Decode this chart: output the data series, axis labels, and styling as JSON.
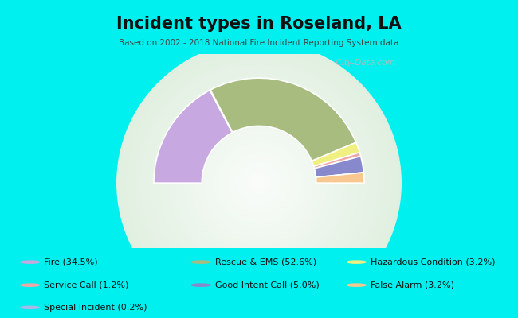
{
  "title": "Incident types in Roseland, LA",
  "subtitle": "Based on 2002 - 2018 National Fire Incident Reporting System data",
  "bg_color": "#00EFEF",
  "chart_bg_outer": "#d8e8cc",
  "chart_bg_inner": "#f0f8f0",
  "categories": [
    "Fire",
    "Service Call",
    "Special Incident",
    "Rescue & EMS",
    "Good Intent Call",
    "Hazardous Condition",
    "False Alarm"
  ],
  "values": [
    34.5,
    1.2,
    0.2,
    52.6,
    5.0,
    3.2,
    3.2
  ],
  "colors": [
    "#c8a8e0",
    "#f0a8a8",
    "#a8b8e8",
    "#a8bc80",
    "#8888cc",
    "#f0f080",
    "#f8c890"
  ],
  "legend_labels": [
    "Fire (34.5%)",
    "Service Call (1.2%)",
    "Special Incident (0.2%)",
    "Rescue & EMS (52.6%)",
    "Good Intent Call (5.0%)",
    "Hazardous Condition (3.2%)",
    "False Alarm (3.2%)"
  ],
  "draw_order": [
    0,
    2,
    3,
    5,
    1,
    4,
    6
  ],
  "watermark": "  City-Data.com",
  "R_outer": 0.92,
  "R_inner": 0.5
}
